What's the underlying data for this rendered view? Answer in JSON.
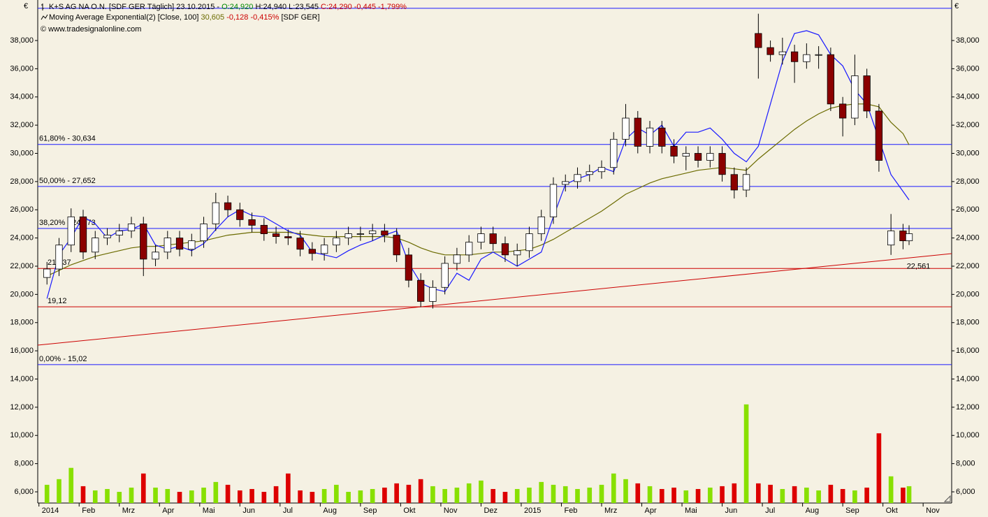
{
  "chart_data": {
    "type": "candlestick",
    "currency": "€",
    "header": {
      "symbol": "K+S AG NA O.N. [SDF GER  Täglich] 23.10.2015 -",
      "open": "O:24,920",
      "high": "H:24,940",
      "low": "L:23,545",
      "close": "C:24,290 -0,445 -1,799%",
      "indicator": "Moving Average Exponential(2) [Close, 100]",
      "indicator_value": "30,605",
      "indicator_change": "-0,128 -0,415%",
      "indicator_source": "[SDF GER]",
      "copyright": "© www.tradesignalonline.com"
    },
    "xlim": [
      -0.03,
      22.71
    ],
    "xticks": [
      {
        "value": 0,
        "label": "2014"
      },
      {
        "value": 1,
        "label": "Feb"
      },
      {
        "value": 2,
        "label": "Mrz"
      },
      {
        "value": 3,
        "label": "Apr"
      },
      {
        "value": 4,
        "label": "Mai"
      },
      {
        "value": 5,
        "label": "Jun"
      },
      {
        "value": 6,
        "label": "Jul"
      },
      {
        "value": 7,
        "label": "Aug"
      },
      {
        "value": 8,
        "label": "Sep"
      },
      {
        "value": 9,
        "label": "Okt"
      },
      {
        "value": 10,
        "label": "Nov"
      },
      {
        "value": 11,
        "label": "Dez"
      },
      {
        "value": 12,
        "label": "2015"
      },
      {
        "value": 13,
        "label": "Feb"
      },
      {
        "value": 14,
        "label": "Mrz"
      },
      {
        "value": 15,
        "label": "Apr"
      },
      {
        "value": 16,
        "label": "Mai"
      },
      {
        "value": 17,
        "label": "Jun"
      },
      {
        "value": 18,
        "label": "Jul"
      },
      {
        "value": 19,
        "label": "Aug"
      },
      {
        "value": 20,
        "label": "Sep"
      },
      {
        "value": 21,
        "label": "Okt"
      },
      {
        "value": 22,
        "label": "Nov"
      }
    ],
    "ylim": [
      5207,
      40378
    ],
    "yticks": [
      {
        "value": 6000,
        "label": "6,000"
      },
      {
        "value": 8000,
        "label": "8,000"
      },
      {
        "value": 10000,
        "label": "10,000"
      },
      {
        "value": 12000,
        "label": "12,000"
      },
      {
        "value": 14000,
        "label": "14,000"
      },
      {
        "value": 16000,
        "label": "16,000"
      },
      {
        "value": 18000,
        "label": "18,000"
      },
      {
        "value": 20000,
        "label": "20,000"
      },
      {
        "value": 22000,
        "label": "22,000"
      },
      {
        "value": 24000,
        "label": "24,000"
      },
      {
        "value": 26000,
        "label": "26,000"
      },
      {
        "value": 28000,
        "label": "28,000"
      },
      {
        "value": 30000,
        "label": "30,000"
      },
      {
        "value": 32000,
        "label": "32,000"
      },
      {
        "value": 34000,
        "label": "34,000"
      },
      {
        "value": 36000,
        "label": "36,000"
      },
      {
        "value": 38000,
        "label": "38,000"
      }
    ],
    "up_color": "#ffffff",
    "down_color": "#8b0000",
    "volume_up_color": "#88e000",
    "volume_down_color": "#dd0000",
    "x": [
      0.2,
      0.5,
      0.8,
      1.1,
      1.4,
      1.7,
      2,
      2.3,
      2.6,
      2.9,
      3.2,
      3.5,
      3.8,
      4.1,
      4.4,
      4.7,
      5,
      5.3,
      5.6,
      5.9,
      6.2,
      6.5,
      6.8,
      7.1,
      7.4,
      7.7,
      8,
      8.3,
      8.6,
      8.9,
      9.2,
      9.5,
      9.8,
      10.1,
      10.4,
      10.7,
      11,
      11.3,
      11.6,
      11.9,
      12.2,
      12.5,
      12.8,
      13.1,
      13.4,
      13.7,
      14,
      14.3,
      14.6,
      14.9,
      15.2,
      15.5,
      15.8,
      16.1,
      16.4,
      16.7,
      17,
      17.3,
      17.6,
      17.9,
      18.2,
      18.5,
      18.8,
      19.1,
      19.4,
      19.7,
      20,
      20.3,
      20.6,
      20.9,
      21.2,
      21.5,
      21.65
    ],
    "open": [
      21200,
      21800,
      23500,
      25500,
      23000,
      24000,
      24200,
      24500,
      25000,
      22500,
      23000,
      24000,
      23200,
      23800,
      25000,
      26500,
      26000,
      25300,
      24900,
      24300,
      24100,
      24000,
      23200,
      22900,
      23500,
      24000,
      24300,
      24300,
      24500,
      24200,
      22800,
      21000,
      19500,
      20500,
      22200,
      22800,
      23700,
      24300,
      23600,
      22800,
      23100,
      24300,
      25500,
      27800,
      28000,
      28500,
      28700,
      29000,
      31000,
      32500,
      30500,
      31800,
      30500,
      29800,
      30000,
      29500,
      30000,
      28500,
      27400,
      38500,
      37500,
      37000,
      37200,
      36500,
      37000,
      37000,
      33500,
      32500,
      35500,
      33000,
      23500,
      24500,
      23800
    ],
    "high": [
      22300,
      24000,
      26100,
      26000,
      24500,
      24700,
      25000,
      25500,
      25500,
      23500,
      24500,
      24500,
      24300,
      25500,
      27200,
      27000,
      26500,
      25800,
      25400,
      24800,
      24600,
      24500,
      23700,
      24000,
      24500,
      24800,
      24800,
      25000,
      25000,
      24700,
      23300,
      21500,
      21000,
      22700,
      23300,
      24200,
      24800,
      24800,
      24100,
      23600,
      24800,
      26000,
      28300,
      28500,
      29000,
      29200,
      29500,
      31500,
      33500,
      33000,
      32300,
      32300,
      31000,
      30500,
      30500,
      30500,
      30500,
      29000,
      29000,
      39900,
      38000,
      38200,
      37700,
      37800,
      37600,
      37500,
      34000,
      37000,
      36000,
      33500,
      25700,
      25000,
      24900
    ],
    "low": [
      20700,
      21300,
      23000,
      22500,
      22500,
      23500,
      23700,
      24000,
      21300,
      22000,
      22500,
      22700,
      22700,
      23300,
      24500,
      25500,
      24800,
      24400,
      23800,
      23600,
      23500,
      22700,
      22400,
      22400,
      23000,
      23500,
      23800,
      23800,
      23700,
      22300,
      20500,
      19100,
      19000,
      20000,
      21700,
      22300,
      23200,
      23100,
      22300,
      22000,
      22600,
      23800,
      25000,
      27300,
      27500,
      28000,
      28200,
      28500,
      30500,
      30000,
      30000,
      30000,
      29300,
      28800,
      29000,
      29000,
      28000,
      26800,
      26900,
      35300,
      36500,
      36300,
      35000,
      36000,
      36000,
      33000,
      31200,
      32000,
      32500,
      28700,
      22800,
      23200,
      23500
    ],
    "close": [
      21800,
      23500,
      25500,
      23000,
      24000,
      24200,
      24500,
      25000,
      22500,
      23000,
      24000,
      23200,
      23800,
      25000,
      26500,
      26000,
      25300,
      24900,
      24300,
      24100,
      24000,
      23200,
      22900,
      23500,
      24000,
      24300,
      24300,
      24500,
      24200,
      22800,
      21000,
      19500,
      20500,
      22200,
      22800,
      23700,
      24300,
      23600,
      22800,
      23100,
      24300,
      25500,
      27800,
      28000,
      28500,
      28700,
      29000,
      31000,
      32500,
      30500,
      31800,
      30500,
      29800,
      30000,
      29500,
      30000,
      28500,
      27400,
      28500,
      37500,
      37000,
      37200,
      36500,
      37000,
      37000,
      33500,
      32500,
      35500,
      33000,
      29500,
      24500,
      23800,
      24300
    ],
    "volume": [
      6500,
      6900,
      7700,
      6400,
      6100,
      6200,
      6000,
      6300,
      7300,
      6300,
      6200,
      6000,
      6100,
      6300,
      6700,
      6500,
      6100,
      6200,
      6000,
      6400,
      7300,
      6100,
      6000,
      6200,
      6500,
      6000,
      6100,
      6200,
      6300,
      6600,
      6500,
      6900,
      6400,
      6200,
      6300,
      6600,
      6800,
      6200,
      6000,
      6200,
      6300,
      6700,
      6500,
      6400,
      6200,
      6300,
      6500,
      7300,
      6900,
      6600,
      6400,
      6200,
      6300,
      6100,
      6200,
      6300,
      6400,
      6600,
      12200,
      6600,
      6500,
      6200,
      6400,
      6300,
      6100,
      6500,
      6200,
      6100,
      6300,
      10150,
      7100,
      6300,
      6400
    ],
    "series": [
      {
        "color": "#6b6b00",
        "values": [
          21300,
          21700,
          22100,
          22400,
          22700,
          22900,
          23100,
          23300,
          23400,
          23400,
          23500,
          23600,
          23700,
          23800,
          24000,
          24200,
          24300,
          24400,
          24400,
          24400,
          24400,
          24300,
          24200,
          24100,
          24100,
          24100,
          24100,
          24100,
          24100,
          24000,
          23700,
          23300,
          23000,
          22800,
          22800,
          22800,
          22900,
          23000,
          23000,
          23100,
          23200,
          23500,
          23900,
          24400,
          24900,
          25400,
          25900,
          26500,
          27100,
          27500,
          27900,
          28200,
          28400,
          28600,
          28800,
          28900,
          29000,
          28900,
          28800,
          29600,
          30300,
          31000,
          31700,
          32300,
          32800,
          33200,
          33400,
          33500,
          33500,
          33300,
          32200,
          31400,
          30600
        ]
      },
      {
        "color": "#1a1aff",
        "values": [
          19700,
          22800,
          24000,
          25500,
          25000,
          24000,
          24500,
          24600,
          25000,
          23500,
          23200,
          23400,
          23100,
          23600,
          24600,
          25500,
          26000,
          25600,
          25500,
          25000,
          24500,
          24200,
          23000,
          22800,
          22600,
          23100,
          23500,
          23800,
          24200,
          24500,
          22200,
          20800,
          20400,
          20200,
          21500,
          21000,
          22500,
          23000,
          22500,
          22000,
          22500,
          23000,
          25500,
          27800,
          28200,
          28500,
          29000,
          28700,
          31000,
          31800,
          31300,
          32000,
          30500,
          31500,
          31500,
          31800,
          31000,
          30000,
          29400,
          30500,
          33500,
          36500,
          38500,
          38700,
          38400,
          37000,
          36200,
          34500,
          33500,
          31000,
          28500,
          27300,
          26700
        ]
      }
    ],
    "levels": [
      {
        "value": 40285,
        "color": "#1a1aff"
      },
      {
        "value": 30634,
        "label": "61,80% - 30,634",
        "color": "#1a1aff"
      },
      {
        "value": 27652,
        "label": "50,00% - 27,652",
        "color": "#1a1aff"
      },
      {
        "value": 24673,
        "label": "38,20% - 24,673",
        "color": "#1a1aff"
      },
      {
        "value": 21837,
        "label": "21,837",
        "color": "#cc0000"
      },
      {
        "value": 19120,
        "label": "19,12",
        "color": "#cc0000"
      },
      {
        "value": 15020,
        "label": "0,00% - 15,02",
        "color": "#1a1aff"
      }
    ],
    "trendline": {
      "color": "#cc0000",
      "x": [
        -0.03,
        22.71
      ],
      "values": [
        16400,
        22890
      ],
      "label": {
        "value": 22561,
        "label": "22,561"
      }
    }
  }
}
